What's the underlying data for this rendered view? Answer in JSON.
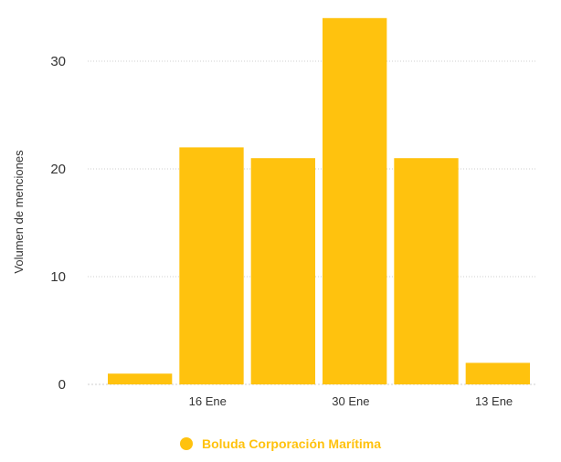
{
  "chart_data": {
    "type": "bar",
    "title": "",
    "xlabel": "",
    "ylabel": "Volumen de menciones",
    "x_tick_labels": [
      {
        "label": "16 Ene",
        "at_index": 1
      },
      {
        "label": "30 Ene",
        "at_index": 3
      },
      {
        "label": "13 Ene",
        "at_index": 5
      }
    ],
    "categories": [
      "",
      "",
      "",
      "",
      "",
      ""
    ],
    "series": [
      {
        "name": "Boluda Corporación Marítima",
        "color": "#FFC20E",
        "values": [
          1,
          22,
          21,
          34,
          21,
          2
        ]
      }
    ],
    "ylim": [
      0,
      34
    ],
    "yticks": [
      0,
      10,
      20,
      30
    ],
    "grid": true,
    "legend_position": "bottom-center"
  },
  "legend": {
    "label": "Boluda Corporación Marítima",
    "color": "#FFC20E"
  },
  "colors": {
    "bar": "#FFC20E",
    "grid": "#cfcfcf",
    "axis_text": "#333333",
    "legend_text": "#FFC20E"
  }
}
